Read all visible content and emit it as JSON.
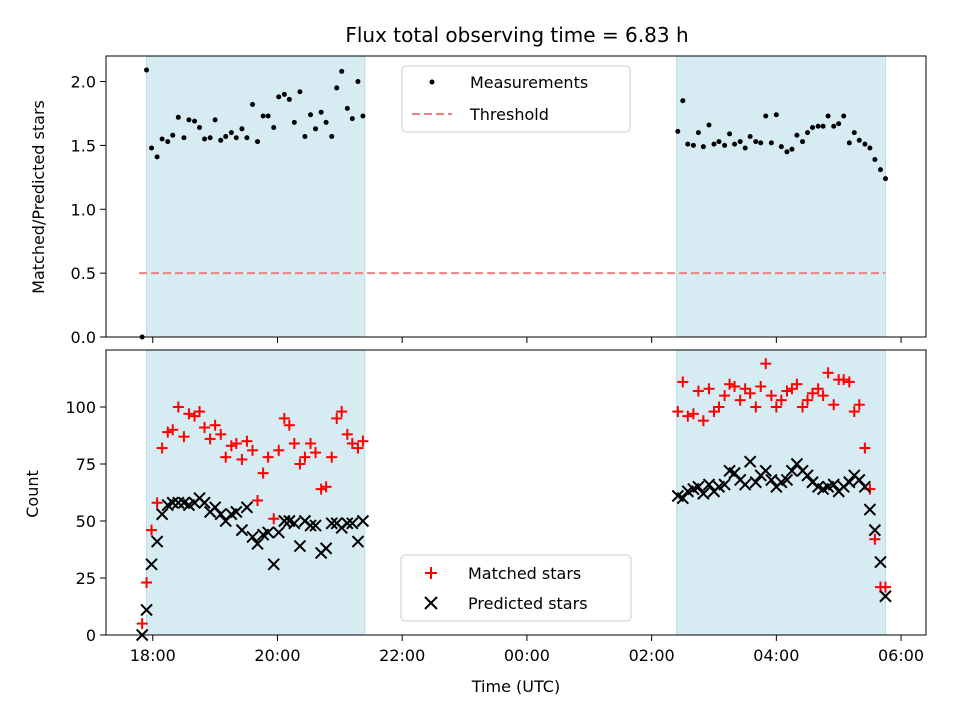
{
  "chart_data": [
    {
      "type": "scatter",
      "title": "Flux total observing time = 6.83 h",
      "xlabel": "",
      "ylabel": "Matched/Predicted stars",
      "ylim": [
        0,
        2.2
      ],
      "yticks": [
        "0.0",
        "0.5",
        "1.0",
        "1.5",
        "2.0"
      ],
      "ytick_values": [
        0,
        0.5,
        1.0,
        1.5,
        2.0
      ],
      "legend": {
        "placement": "top-center",
        "entries": [
          "Measurements",
          "Threshold"
        ]
      },
      "threshold": {
        "name": "Threshold",
        "value": 0.5,
        "x_start": -0.22,
        "x_end": 11.75,
        "color": "#f08080"
      },
      "shaded_regions": [
        [
          -0.1,
          3.4
        ],
        [
          8.4,
          11.75
        ]
      ],
      "shade_color": "#add8e6",
      "series": [
        {
          "name": "Measurements",
          "color": "#000000",
          "marker": "dot",
          "x": [
            -0.17,
            -0.1,
            -0.02,
            0.07,
            0.15,
            0.24,
            0.32,
            0.41,
            0.5,
            0.58,
            0.67,
            0.75,
            0.83,
            0.92,
            1.0,
            1.09,
            1.17,
            1.26,
            1.34,
            1.43,
            1.51,
            1.6,
            1.68,
            1.77,
            1.85,
            1.94,
            2.02,
            2.11,
            2.19,
            2.27,
            2.36,
            2.44,
            2.53,
            2.61,
            2.7,
            2.78,
            2.87,
            2.95,
            3.03,
            3.12,
            3.2,
            3.29,
            3.37,
            8.42,
            8.5,
            8.58,
            8.67,
            8.75,
            8.83,
            8.92,
            9.0,
            9.08,
            9.17,
            9.25,
            9.33,
            9.42,
            9.5,
            9.58,
            9.67,
            9.75,
            9.83,
            9.92,
            10.0,
            10.08,
            10.17,
            10.25,
            10.33,
            10.42,
            10.5,
            10.58,
            10.67,
            10.75,
            10.83,
            10.92,
            11.0,
            11.08,
            11.17,
            11.25,
            11.33,
            11.42,
            11.5,
            11.58,
            11.67,
            11.75
          ],
          "y": [
            0.0,
            2.09,
            1.48,
            1.41,
            1.55,
            1.53,
            1.58,
            1.72,
            1.56,
            1.7,
            1.69,
            1.64,
            1.55,
            1.56,
            1.7,
            1.54,
            1.57,
            1.6,
            1.56,
            1.63,
            1.56,
            1.82,
            1.53,
            1.73,
            1.73,
            1.64,
            1.88,
            1.9,
            1.86,
            1.68,
            1.92,
            1.57,
            1.74,
            1.63,
            1.76,
            1.68,
            1.57,
            1.95,
            2.08,
            1.79,
            1.71,
            2.0,
            1.73,
            1.61,
            1.85,
            1.51,
            1.5,
            1.6,
            1.49,
            1.66,
            1.51,
            1.53,
            1.5,
            1.59,
            1.51,
            1.53,
            1.48,
            1.57,
            1.53,
            1.52,
            1.73,
            1.52,
            1.74,
            1.49,
            1.45,
            1.47,
            1.58,
            1.53,
            1.6,
            1.64,
            1.65,
            1.65,
            1.73,
            1.65,
            1.67,
            1.73,
            1.52,
            1.6,
            1.54,
            1.51,
            1.48,
            1.39,
            1.31,
            1.24
          ]
        }
      ]
    },
    {
      "type": "scatter",
      "title": "",
      "xlabel": "Time (UTC)",
      "ylabel": "Count",
      "ylim": [
        0,
        125
      ],
      "yticks": [
        "0",
        "25",
        "50",
        "75",
        "100"
      ],
      "ytick_values": [
        0,
        25,
        50,
        75,
        100
      ],
      "xlim": [
        -0.75,
        12.4
      ],
      "xticks": [
        "18:00",
        "20:00",
        "22:00",
        "00:00",
        "02:00",
        "04:00",
        "06:00"
      ],
      "xtick_values": [
        0,
        2,
        4,
        6,
        8,
        10,
        12
      ],
      "legend": {
        "placement": "bottom-center",
        "entries": [
          "Matched stars",
          "Predicted stars"
        ]
      },
      "shaded_regions": [
        [
          -0.1,
          3.4
        ],
        [
          8.4,
          11.75
        ]
      ],
      "shade_color": "#add8e6",
      "x": [
        -0.17,
        -0.1,
        -0.02,
        0.07,
        0.15,
        0.24,
        0.32,
        0.41,
        0.5,
        0.58,
        0.67,
        0.75,
        0.83,
        0.92,
        1.0,
        1.09,
        1.17,
        1.26,
        1.34,
        1.43,
        1.51,
        1.6,
        1.68,
        1.77,
        1.85,
        1.94,
        2.02,
        2.11,
        2.19,
        2.27,
        2.36,
        2.44,
        2.53,
        2.61,
        2.7,
        2.78,
        2.87,
        2.95,
        3.03,
        3.12,
        3.2,
        3.29,
        3.37,
        8.42,
        8.5,
        8.58,
        8.67,
        8.75,
        8.83,
        8.92,
        9.0,
        9.08,
        9.17,
        9.25,
        9.33,
        9.42,
        9.5,
        9.58,
        9.67,
        9.75,
        9.83,
        9.92,
        10.0,
        10.08,
        10.17,
        10.25,
        10.33,
        10.42,
        10.5,
        10.58,
        10.67,
        10.75,
        10.83,
        10.92,
        11.0,
        11.08,
        11.17,
        11.25,
        11.33,
        11.42,
        11.5,
        11.58,
        11.67,
        11.75
      ],
      "series": [
        {
          "name": "Matched stars",
          "color": "#ff0000",
          "marker": "plus",
          "values": [
            5,
            23,
            46,
            58,
            82,
            89,
            90,
            100,
            87,
            97,
            96,
            98,
            91,
            86,
            92,
            88,
            78,
            83,
            84,
            77,
            85,
            81,
            59,
            71,
            78,
            51,
            81,
            95,
            92,
            84,
            75,
            78,
            84,
            80,
            64,
            65,
            78,
            95,
            98,
            88,
            84,
            82,
            85,
            98,
            111,
            96,
            97,
            107,
            94,
            108,
            98,
            100,
            105,
            110,
            109,
            103,
            108,
            106,
            100,
            109,
            119,
            105,
            100,
            103,
            107,
            108,
            110,
            100,
            103,
            106,
            108,
            105,
            115,
            101,
            112,
            112,
            111,
            98,
            101,
            82,
            64,
            42,
            21,
            21
          ]
        },
        {
          "name": "Predicted stars",
          "color": "#000000",
          "marker": "x",
          "values": [
            0,
            11,
            31,
            41,
            53,
            57,
            58,
            58,
            58,
            57,
            58,
            60,
            58,
            54,
            56,
            53,
            50,
            53,
            54,
            46,
            56,
            43,
            40,
            44,
            45,
            31,
            45,
            50,
            50,
            49,
            39,
            50,
            48,
            48,
            36,
            38,
            49,
            49,
            47,
            49,
            49,
            41,
            50,
            61,
            60,
            63,
            64,
            65,
            62,
            66,
            63,
            65,
            66,
            72,
            71,
            68,
            66,
            76,
            67,
            70,
            72,
            68,
            65,
            67,
            68,
            72,
            75,
            72,
            70,
            67,
            65,
            64,
            65,
            66,
            63,
            65,
            67,
            70,
            68,
            65,
            55,
            46,
            32,
            17
          ]
        }
      ]
    }
  ]
}
